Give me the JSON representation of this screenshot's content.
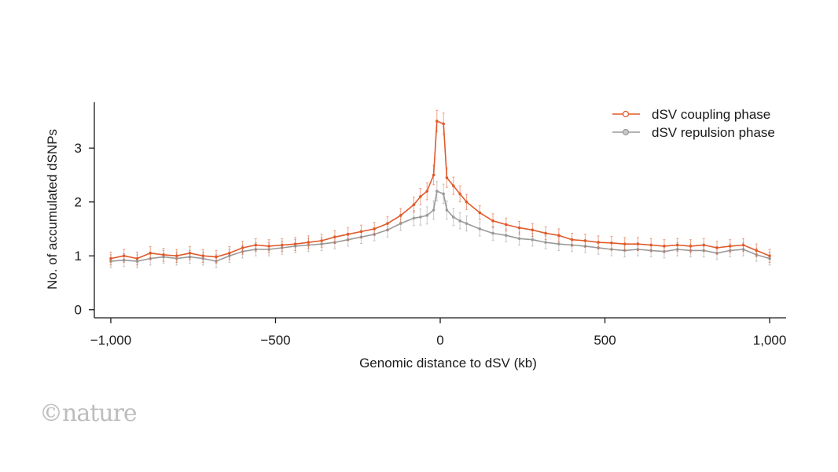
{
  "chart_data": {
    "type": "line",
    "title": "",
    "xlabel": "Genomic distance to dSV (kb)",
    "ylabel": "No. of accumulated dSNPs",
    "xlim": [
      -1050,
      1050
    ],
    "ylim": [
      -0.15,
      3.85
    ],
    "xticks": [
      -1000,
      -500,
      0,
      500,
      1000
    ],
    "xtick_labels": [
      "−1,000",
      "−500",
      "0",
      "500",
      "1,000"
    ],
    "yticks": [
      0,
      1,
      2,
      3
    ],
    "ytick_labels": [
      "0",
      "1",
      "2",
      "3"
    ],
    "legend_position": "top-right",
    "grid": false,
    "series": [
      {
        "name": "dSV coupling phase",
        "color": "#e05a2b",
        "x": [
          -1000,
          -960,
          -920,
          -880,
          -840,
          -800,
          -760,
          -720,
          -680,
          -640,
          -600,
          -560,
          -520,
          -480,
          -440,
          -400,
          -360,
          -320,
          -280,
          -240,
          -200,
          -160,
          -120,
          -80,
          -60,
          -40,
          -20,
          -10,
          10,
          20,
          40,
          60,
          80,
          120,
          160,
          200,
          240,
          280,
          320,
          360,
          400,
          440,
          480,
          520,
          560,
          600,
          640,
          680,
          720,
          760,
          800,
          840,
          880,
          920,
          960,
          1000
        ],
        "values": [
          0.95,
          1.0,
          0.95,
          1.05,
          1.02,
          1.0,
          1.05,
          1.0,
          0.98,
          1.05,
          1.15,
          1.2,
          1.18,
          1.2,
          1.22,
          1.25,
          1.28,
          1.35,
          1.4,
          1.45,
          1.5,
          1.6,
          1.75,
          1.95,
          2.1,
          2.2,
          2.5,
          3.5,
          3.45,
          2.45,
          2.3,
          2.15,
          2.0,
          1.8,
          1.65,
          1.58,
          1.52,
          1.48,
          1.42,
          1.38,
          1.3,
          1.28,
          1.25,
          1.24,
          1.22,
          1.22,
          1.2,
          1.18,
          1.2,
          1.18,
          1.2,
          1.15,
          1.18,
          1.2,
          1.1,
          1.0
        ],
        "error": [
          0.12,
          0.12,
          0.12,
          0.12,
          0.12,
          0.12,
          0.12,
          0.12,
          0.12,
          0.12,
          0.12,
          0.12,
          0.12,
          0.12,
          0.12,
          0.12,
          0.12,
          0.12,
          0.12,
          0.12,
          0.12,
          0.13,
          0.13,
          0.14,
          0.15,
          0.16,
          0.18,
          0.2,
          0.2,
          0.18,
          0.16,
          0.15,
          0.14,
          0.13,
          0.13,
          0.12,
          0.12,
          0.12,
          0.12,
          0.12,
          0.12,
          0.12,
          0.12,
          0.12,
          0.12,
          0.12,
          0.12,
          0.12,
          0.12,
          0.12,
          0.12,
          0.12,
          0.12,
          0.12,
          0.12,
          0.12
        ]
      },
      {
        "name": "dSV repulsion phase",
        "color": "#9a9a9a",
        "x": [
          -1000,
          -960,
          -920,
          -880,
          -840,
          -800,
          -760,
          -720,
          -680,
          -640,
          -600,
          -560,
          -520,
          -480,
          -440,
          -400,
          -360,
          -320,
          -280,
          -240,
          -200,
          -160,
          -120,
          -80,
          -60,
          -40,
          -20,
          -10,
          10,
          20,
          40,
          60,
          80,
          120,
          160,
          200,
          240,
          280,
          320,
          360,
          400,
          440,
          480,
          520,
          560,
          600,
          640,
          680,
          720,
          760,
          800,
          840,
          880,
          920,
          960,
          1000
        ],
        "values": [
          0.9,
          0.92,
          0.9,
          0.95,
          0.98,
          0.95,
          0.98,
          0.95,
          0.9,
          1.0,
          1.08,
          1.12,
          1.12,
          1.15,
          1.18,
          1.2,
          1.22,
          1.25,
          1.3,
          1.35,
          1.4,
          1.48,
          1.6,
          1.7,
          1.72,
          1.75,
          1.85,
          2.2,
          2.15,
          1.85,
          1.72,
          1.65,
          1.6,
          1.5,
          1.42,
          1.38,
          1.32,
          1.3,
          1.25,
          1.22,
          1.2,
          1.18,
          1.15,
          1.12,
          1.1,
          1.12,
          1.1,
          1.08,
          1.12,
          1.1,
          1.1,
          1.05,
          1.1,
          1.12,
          1.02,
          0.95
        ],
        "error": [
          0.12,
          0.12,
          0.12,
          0.12,
          0.12,
          0.12,
          0.12,
          0.12,
          0.12,
          0.12,
          0.12,
          0.12,
          0.12,
          0.12,
          0.12,
          0.12,
          0.12,
          0.12,
          0.12,
          0.12,
          0.12,
          0.13,
          0.13,
          0.14,
          0.15,
          0.16,
          0.17,
          0.18,
          0.18,
          0.17,
          0.16,
          0.15,
          0.14,
          0.13,
          0.13,
          0.12,
          0.12,
          0.12,
          0.12,
          0.12,
          0.12,
          0.12,
          0.12,
          0.12,
          0.12,
          0.12,
          0.12,
          0.12,
          0.12,
          0.12,
          0.12,
          0.12,
          0.12,
          0.12,
          0.12,
          0.12
        ]
      }
    ]
  },
  "watermark": "©nature"
}
